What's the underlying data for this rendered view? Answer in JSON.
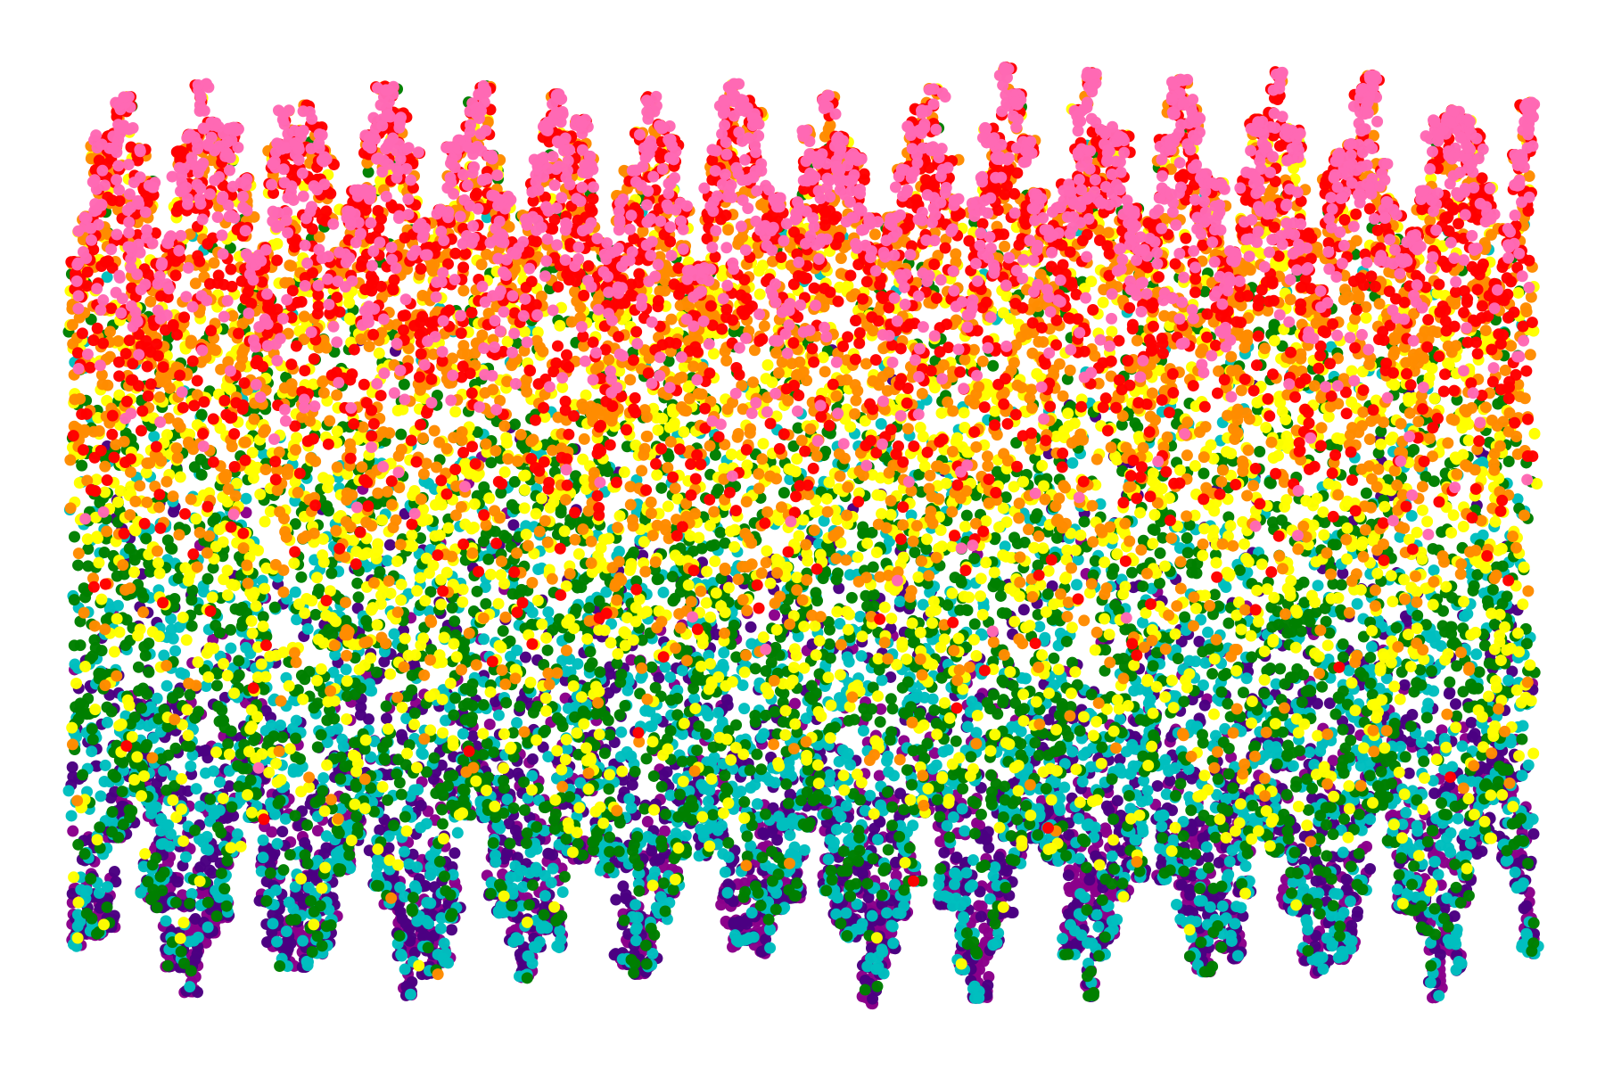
{
  "chart_data": {
    "type": "scatter",
    "title": "",
    "xlabel": "",
    "ylabel": "",
    "axes_visible": false,
    "grid": false,
    "legend": "none",
    "xlim": [
      0,
      100
    ],
    "ylim": [
      -1,
      1
    ],
    "palette": [
      "#ff69b4",
      "#ff0000",
      "#ff8c00",
      "#ffff00",
      "#008000",
      "#00bfbf",
      "#4b0082",
      "#8b008b"
    ],
    "series": [
      {
        "color": "#ff69b4",
        "x": [],
        "y": []
      },
      {
        "color": "#ff0000",
        "x": [],
        "y": []
      },
      {
        "color": "#ff8c00",
        "x": [],
        "y": []
      },
      {
        "color": "#ffff00",
        "x": [],
        "y": []
      },
      {
        "color": "#008000",
        "x": [],
        "y": []
      },
      {
        "color": "#00bfbf",
        "x": [],
        "y": []
      },
      {
        "color": "#4b0082",
        "x": [],
        "y": []
      },
      {
        "color": "#8b008b",
        "x": [],
        "y": []
      }
    ],
    "note_visual_encoding": ""
  }
}
